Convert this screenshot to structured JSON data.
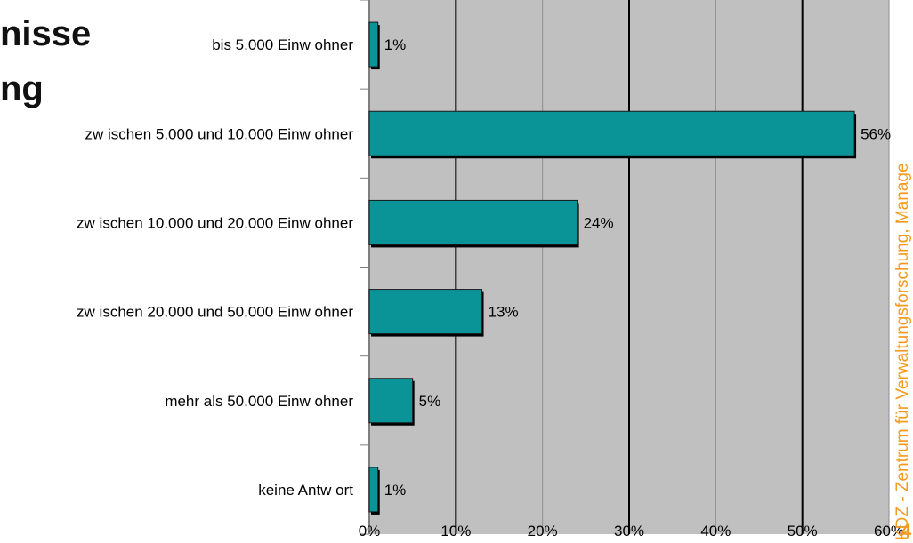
{
  "slide": {
    "title_lines": [
      "nisse",
      "ng"
    ],
    "side_text": "KDZ - Zentrum für Verwaltungsforschung, Manage",
    "slide_number": "4"
  },
  "colors": {
    "bar": "#0b9497",
    "plot_bg": "#c0c0c0",
    "accent": "#f39a1f"
  },
  "chart_data": {
    "type": "bar",
    "orientation": "horizontal",
    "categories": [
      "bis 5.000 Einw ohner",
      "zw ischen 5.000 und 10.000 Einw ohner",
      "zw ischen 10.000 und 20.000 Einw ohner",
      "zw ischen 20.000 und 50.000 Einw ohner",
      "mehr als 50.000 Einw ohner",
      "keine Antw ort"
    ],
    "values": [
      1,
      56,
      24,
      13,
      5,
      1
    ],
    "data_labels": [
      "1%",
      "56%",
      "24%",
      "13%",
      "5%",
      "1%"
    ],
    "x_ticks": [
      "0%",
      "10%",
      "20%",
      "30%",
      "40%",
      "50%",
      "60%"
    ],
    "xlim": [
      0,
      60
    ],
    "grid": true
  }
}
